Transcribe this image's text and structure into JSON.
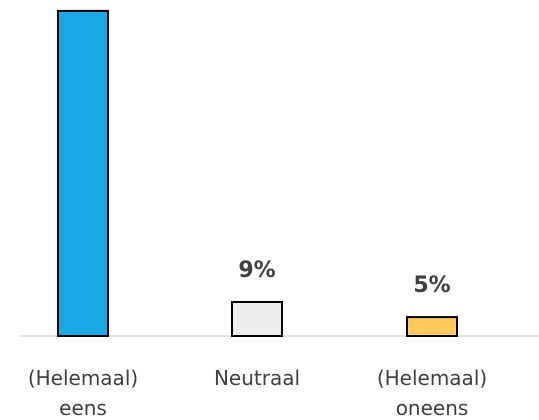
{
  "chart_data": {
    "type": "bar",
    "categories": [
      [
        "(Helemaal)",
        "eens"
      ],
      [
        "Neutraal"
      ],
      [
        "(Helemaal)",
        "oneens"
      ]
    ],
    "values": [
      86,
      9,
      5
    ],
    "value_labels": [
      "",
      "9%",
      "5%"
    ],
    "bar_colors": [
      "#1aa7e6",
      "#eeeeee",
      "#ffc95c"
    ],
    "grid": false,
    "legend": "none"
  }
}
